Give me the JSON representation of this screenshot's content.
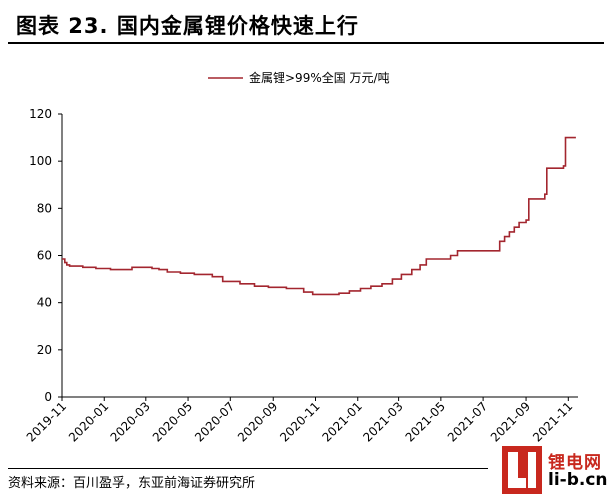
{
  "page": {
    "title": "图表 23. 国内金属锂价格快速上行",
    "source": "资料来源：百川盈孚，东亚前海证券研究所",
    "logo": {
      "cn": "锂电网",
      "en": "li-b.cn"
    }
  },
  "chart_data": {
    "type": "line",
    "title": "",
    "xlabel": "",
    "ylabel": "",
    "ylim": [
      0,
      120
    ],
    "yticks": [
      0,
      20,
      40,
      60,
      80,
      100,
      120
    ],
    "xlim": [
      "2019-11-01",
      "2021-11-15"
    ],
    "xticks": [
      "2019-11",
      "2020-01",
      "2020-03",
      "2020-05",
      "2020-07",
      "2020-09",
      "2020-11",
      "2021-01",
      "2021-03",
      "2021-05",
      "2021-07",
      "2021-09",
      "2021-11"
    ],
    "grid": false,
    "legend_position": "top-center",
    "colors": {
      "series": "#a3262f",
      "axis": "#000000"
    },
    "series": [
      {
        "name": "金属锂>99%全国 万元/吨",
        "step": true,
        "points": [
          [
            "2019-11-01",
            58.5
          ],
          [
            "2019-11-05",
            57
          ],
          [
            "2019-11-08",
            56
          ],
          [
            "2019-11-12",
            55.5
          ],
          [
            "2019-12-01",
            55
          ],
          [
            "2019-12-20",
            54.5
          ],
          [
            "2020-01-10",
            54
          ],
          [
            "2020-02-01",
            54
          ],
          [
            "2020-02-10",
            55
          ],
          [
            "2020-03-10",
            54.5
          ],
          [
            "2020-03-20",
            54
          ],
          [
            "2020-04-01",
            53
          ],
          [
            "2020-04-20",
            52.5
          ],
          [
            "2020-05-10",
            52
          ],
          [
            "2020-06-05",
            51
          ],
          [
            "2020-06-20",
            49
          ],
          [
            "2020-07-15",
            48
          ],
          [
            "2020-08-05",
            47
          ],
          [
            "2020-08-25",
            46.5
          ],
          [
            "2020-09-20",
            46
          ],
          [
            "2020-10-15",
            44.5
          ],
          [
            "2020-10-28",
            43.5
          ],
          [
            "2020-11-15",
            43.5
          ],
          [
            "2020-12-05",
            44
          ],
          [
            "2020-12-20",
            45
          ],
          [
            "2021-01-05",
            46
          ],
          [
            "2021-01-20",
            47
          ],
          [
            "2021-02-05",
            48
          ],
          [
            "2021-02-20",
            50
          ],
          [
            "2021-03-05",
            52
          ],
          [
            "2021-03-20",
            54
          ],
          [
            "2021-04-01",
            56
          ],
          [
            "2021-04-10",
            58.5
          ],
          [
            "2021-05-15",
            60
          ],
          [
            "2021-05-25",
            62
          ],
          [
            "2021-07-15",
            62
          ],
          [
            "2021-07-25",
            66
          ],
          [
            "2021-08-01",
            68
          ],
          [
            "2021-08-08",
            70
          ],
          [
            "2021-08-15",
            72
          ],
          [
            "2021-08-22",
            74
          ],
          [
            "2021-09-01",
            75
          ],
          [
            "2021-09-05",
            84
          ],
          [
            "2021-09-28",
            86
          ],
          [
            "2021-10-01",
            97
          ],
          [
            "2021-10-25",
            98
          ],
          [
            "2021-10-28",
            110
          ],
          [
            "2021-11-12",
            110
          ]
        ]
      }
    ]
  }
}
